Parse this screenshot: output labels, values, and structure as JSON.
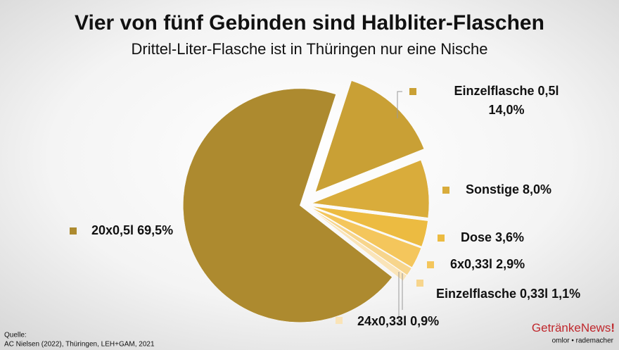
{
  "chart_data": {
    "type": "pie",
    "title": "Vier von fünf Gebinden sind Halbliter-Flaschen",
    "subtitle": "Drittel-Liter-Flasche ist in Thüringen nur eine Nische",
    "categories": [
      "Einzelflasche 0,5l",
      "Sonstige",
      "Dose",
      "6x0,33l",
      "Einzelflasche 0,33l",
      "24x0,33l",
      "20x0,5l"
    ],
    "values": [
      14.0,
      8.0,
      3.6,
      2.9,
      1.1,
      0.9,
      69.5
    ],
    "value_labels": [
      "14,0%",
      "8,0%",
      "3,6%",
      "2,9%",
      "1,1%",
      "0,9%",
      "69,5%"
    ],
    "colors": [
      "#c9a035",
      "#d9ac3b",
      "#ecbb41",
      "#f4c65c",
      "#f7d58c",
      "#fae4b8",
      "#ad8a2f"
    ]
  },
  "source": {
    "label": "Quelle:",
    "text": "AC Nielsen (2022), Thüringen, LEH+GAM, 2021"
  },
  "logo": {
    "name": "GetränkeNews",
    "mark": "!",
    "tagline": "omlor • rademacher"
  }
}
